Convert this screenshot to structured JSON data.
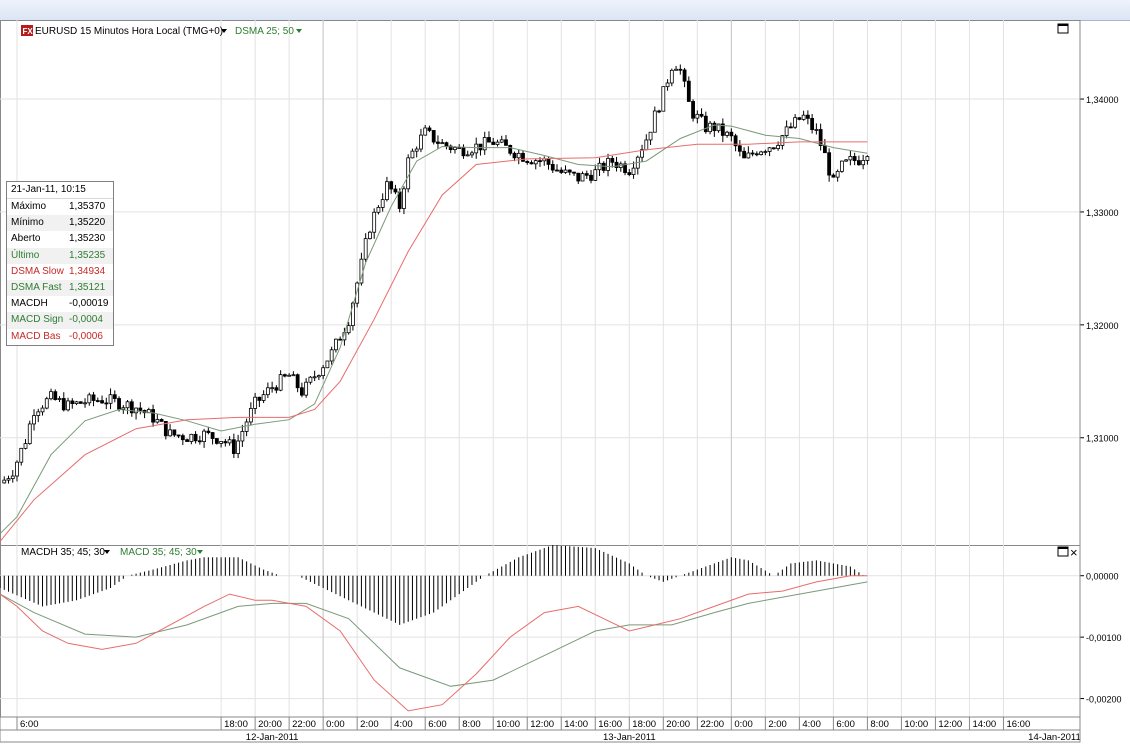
{
  "price_panel": {
    "symbol_label": "EURUSD 15 Minutos Hora Local (TMG+0)",
    "indicator_label": "DSMA 25; 50",
    "indicator_color": "#2e7d32",
    "logo_text": "FX"
  },
  "macd_panel": {
    "label_macdh": "MACDH 35; 45; 30",
    "label_macd": "MACD 35; 45; 30",
    "close_glyph": "×"
  },
  "infobox": {
    "title": "21-Jan-11, 10:15",
    "rows": [
      {
        "label": "Máximo",
        "value": "1,35370",
        "color": "#000000"
      },
      {
        "label": "Mínimo",
        "value": "1,35220",
        "color": "#000000"
      },
      {
        "label": "Aberto",
        "value": "1,35230",
        "color": "#000000"
      },
      {
        "label": "Último",
        "value": "1,35235",
        "color": "#2e7d32"
      },
      {
        "label": "DSMA Slow",
        "value": "1,34934",
        "color": "#c62828"
      },
      {
        "label": "DSMA Fast",
        "value": "1,35121",
        "color": "#2e7d32"
      },
      {
        "label": "MACDH",
        "value": "-0,00019",
        "color": "#000000"
      },
      {
        "label": "MACD Sign",
        "value": "-0,0004",
        "color": "#2e7d32"
      },
      {
        "label": "MACD Bas",
        "value": "-0,0006",
        "color": "#c62828"
      }
    ]
  },
  "chart_data": [
    {
      "type": "candlestick",
      "title": "EURUSD 15 Minutos Hora Local (TMG+0)",
      "ylim": [
        1.3005,
        1.347
      ],
      "y_ticks": [
        "1,34000",
        "1,33000",
        "1,32000",
        "1,31000"
      ],
      "y_tick_values": [
        1.34,
        1.33,
        1.32,
        1.31
      ],
      "x_ticks": [
        "6:00",
        "18:00",
        "20:00",
        "22:00",
        "0:00",
        "2:00",
        "4:00",
        "6:00",
        "8:00",
        "10:00",
        "12:00",
        "14:00",
        "16:00",
        "18:00",
        "20:00",
        "22:00",
        "0:00",
        "2:00",
        "4:00",
        "6:00",
        "8:00",
        "10:00",
        "12:00",
        "14:00",
        "16:00"
      ],
      "x_tick_hours": [
        6,
        18,
        20,
        22,
        24,
        26,
        28,
        30,
        32,
        34,
        36,
        38,
        40,
        42,
        44,
        46,
        48,
        50,
        52,
        54,
        56,
        58,
        60,
        62,
        64
      ],
      "date_labels": [
        "12-Jan-2011",
        "13-Jan-2011",
        "14-Jan-2011"
      ],
      "date_label_hours": [
        21,
        42,
        67
      ],
      "x_range_hours": [
        5,
        68.5
      ],
      "close_path": [
        [
          5.1,
          1.306
        ],
        [
          5.8,
          1.3072
        ],
        [
          6.5,
          1.3098
        ],
        [
          7.0,
          1.3125
        ],
        [
          7.5,
          1.313
        ],
        [
          8.0,
          1.3135
        ],
        [
          9.0,
          1.3128
        ],
        [
          10.0,
          1.3132
        ],
        [
          11.0,
          1.3134
        ],
        [
          12.0,
          1.3131
        ],
        [
          13.0,
          1.3127
        ],
        [
          14.0,
          1.3118
        ],
        [
          15.0,
          1.3103
        ],
        [
          16.0,
          1.3101
        ],
        [
          17.0,
          1.3103
        ],
        [
          18.0,
          1.3099
        ],
        [
          18.8,
          1.309
        ],
        [
          19.5,
          1.3115
        ],
        [
          20.0,
          1.313
        ],
        [
          21.0,
          1.3145
        ],
        [
          22.0,
          1.3155
        ],
        [
          22.8,
          1.314
        ],
        [
          23.5,
          1.3155
        ],
        [
          24.5,
          1.3175
        ],
        [
          25.5,
          1.3205
        ],
        [
          26.2,
          1.325
        ],
        [
          26.7,
          1.3285
        ],
        [
          27.2,
          1.3305
        ],
        [
          27.8,
          1.3325
        ],
        [
          28.5,
          1.3305
        ],
        [
          29.0,
          1.3345
        ],
        [
          29.5,
          1.336
        ],
        [
          30.0,
          1.337
        ],
        [
          31.0,
          1.336
        ],
        [
          32.0,
          1.3355
        ],
        [
          33.0,
          1.3358
        ],
        [
          34.0,
          1.3362
        ],
        [
          35.0,
          1.3355
        ],
        [
          36.0,
          1.3348
        ],
        [
          37.0,
          1.3345
        ],
        [
          38.0,
          1.3335
        ],
        [
          39.0,
          1.333
        ],
        [
          40.0,
          1.3335
        ],
        [
          41.0,
          1.3345
        ],
        [
          42.0,
          1.3338
        ],
        [
          43.0,
          1.3365
        ],
        [
          44.0,
          1.3405
        ],
        [
          44.6,
          1.3435
        ],
        [
          45.0,
          1.3425
        ],
        [
          45.6,
          1.339
        ],
        [
          46.5,
          1.3375
        ],
        [
          47.0,
          1.3375
        ],
        [
          48.0,
          1.3365
        ],
        [
          48.7,
          1.3345
        ],
        [
          49.5,
          1.3355
        ],
        [
          50.5,
          1.336
        ],
        [
          51.5,
          1.3375
        ],
        [
          52.2,
          1.3385
        ],
        [
          53.0,
          1.337
        ],
        [
          53.5,
          1.335
        ],
        [
          54.0,
          1.3325
        ],
        [
          54.5,
          1.334
        ],
        [
          55.0,
          1.3345
        ],
        [
          55.6,
          1.3347
        ],
        [
          56.0,
          1.3355
        ]
      ],
      "series": [
        {
          "name": "DSMA 25",
          "color": "#7a9a7a",
          "values": [
            [
              5.0,
              1.3015
            ],
            [
              6.0,
              1.303
            ],
            [
              8.0,
              1.3085
            ],
            [
              10.0,
              1.3115
            ],
            [
              12.0,
              1.3125
            ],
            [
              14.0,
              1.3122
            ],
            [
              16.0,
              1.3115
            ],
            [
              18.0,
              1.3106
            ],
            [
              20.0,
              1.3112
            ],
            [
              22.0,
              1.3116
            ],
            [
              23.5,
              1.313
            ],
            [
              25.0,
              1.318
            ],
            [
              26.5,
              1.3255
            ],
            [
              28.0,
              1.3305
            ],
            [
              29.5,
              1.3345
            ],
            [
              31.0,
              1.3358
            ],
            [
              33.0,
              1.3357
            ],
            [
              35.0,
              1.3357
            ],
            [
              37.0,
              1.335
            ],
            [
              39.0,
              1.3342
            ],
            [
              41.0,
              1.334
            ],
            [
              43.0,
              1.3345
            ],
            [
              45.0,
              1.3365
            ],
            [
              47.0,
              1.3377
            ],
            [
              48.0,
              1.3376
            ],
            [
              50.0,
              1.3368
            ],
            [
              52.0,
              1.3365
            ],
            [
              54.0,
              1.3357
            ],
            [
              56.0,
              1.3352
            ]
          ]
        },
        {
          "name": "DSMA 50",
          "color": "#e86c6c",
          "values": [
            [
              5.0,
              1.3008
            ],
            [
              7.0,
              1.3045
            ],
            [
              10.0,
              1.3085
            ],
            [
              13.0,
              1.3108
            ],
            [
              16.0,
              1.3116
            ],
            [
              19.0,
              1.3118
            ],
            [
              22.0,
              1.3118
            ],
            [
              23.5,
              1.3125
            ],
            [
              25.0,
              1.315
            ],
            [
              27.0,
              1.3205
            ],
            [
              29.0,
              1.3265
            ],
            [
              31.0,
              1.3315
            ],
            [
              33.0,
              1.3342
            ],
            [
              36.0,
              1.3347
            ],
            [
              40.0,
              1.3348
            ],
            [
              43.0,
              1.3355
            ],
            [
              46.0,
              1.336
            ],
            [
              49.0,
              1.336
            ],
            [
              52.0,
              1.3362
            ],
            [
              56.0,
              1.3362
            ]
          ]
        }
      ]
    },
    {
      "type": "bar+line",
      "title": "MACDH 35; 45; 30 / MACD 35; 45; 30",
      "ylim": [
        -0.0023,
        0.0005
      ],
      "y_ticks": [
        "0,00000",
        "-0,00100",
        "-0,00200"
      ],
      "y_tick_values": [
        0,
        -0.001,
        -0.002
      ],
      "histogram_path": [
        [
          5.0,
          -0.0002
        ],
        [
          7.5,
          -0.0005
        ],
        [
          9.5,
          -0.0004
        ],
        [
          11.5,
          -0.0002
        ],
        [
          12.5,
          0.0
        ],
        [
          14.0,
          0.0001
        ],
        [
          16.0,
          0.00025
        ],
        [
          17.0,
          0.0003
        ],
        [
          19.0,
          0.0003
        ],
        [
          20.5,
          0.0001
        ],
        [
          21.5,
          0.0
        ],
        [
          22.5,
          0.0
        ],
        [
          24.0,
          -0.0002
        ],
        [
          27.0,
          -0.0006
        ],
        [
          28.5,
          -0.0008
        ],
        [
          30.5,
          -0.0006
        ],
        [
          32.0,
          -0.0003
        ],
        [
          33.5,
          0.0
        ],
        [
          35.5,
          0.0003
        ],
        [
          37.5,
          0.0005
        ],
        [
          40.0,
          0.00045
        ],
        [
          42.0,
          0.0002
        ],
        [
          43.0,
          0.0
        ],
        [
          44.0,
          -0.0001
        ],
        [
          46.0,
          0.0001
        ],
        [
          48.0,
          0.0003
        ],
        [
          49.0,
          0.00025
        ],
        [
          50.5,
          0.0
        ],
        [
          51.5,
          0.0002
        ],
        [
          53.0,
          0.00025
        ],
        [
          55.0,
          0.00015
        ],
        [
          55.8,
          0.0
        ]
      ],
      "series": [
        {
          "name": "MACD 35; 45; 30",
          "color": "#7a9a7a",
          "values": [
            [
              5.0,
              -0.0003
            ],
            [
              7.0,
              -0.0006
            ],
            [
              10.0,
              -0.00095
            ],
            [
              13.0,
              -0.001
            ],
            [
              16.0,
              -0.0008
            ],
            [
              19.0,
              -0.0005
            ],
            [
              21.0,
              -0.00045
            ],
            [
              23.0,
              -0.00045
            ],
            [
              25.5,
              -0.0007
            ],
            [
              28.5,
              -0.0015
            ],
            [
              31.5,
              -0.0018
            ],
            [
              34.0,
              -0.0017
            ],
            [
              37.0,
              -0.0013
            ],
            [
              40.0,
              -0.0009
            ],
            [
              42.0,
              -0.0008
            ],
            [
              44.5,
              -0.0008
            ],
            [
              47.0,
              -0.0006
            ],
            [
              49.0,
              -0.00045
            ],
            [
              52.0,
              -0.0003
            ],
            [
              56.0,
              -0.0001
            ]
          ]
        },
        {
          "name": "MACD Bas",
          "color": "#e86c6c",
          "values": [
            [
              5.0,
              -0.0003
            ],
            [
              6.0,
              -0.0005
            ],
            [
              7.5,
              -0.0009
            ],
            [
              9.0,
              -0.0011
            ],
            [
              11.0,
              -0.0012
            ],
            [
              13.0,
              -0.0011
            ],
            [
              15.0,
              -0.0008
            ],
            [
              17.0,
              -0.0005
            ],
            [
              18.5,
              -0.0003
            ],
            [
              20.0,
              -0.0004
            ],
            [
              21.0,
              -0.0004
            ],
            [
              23.0,
              -0.0005
            ],
            [
              25.0,
              -0.0009
            ],
            [
              27.0,
              -0.0017
            ],
            [
              29.0,
              -0.0022
            ],
            [
              31.0,
              -0.0021
            ],
            [
              33.0,
              -0.0016
            ],
            [
              35.0,
              -0.001
            ],
            [
              37.0,
              -0.0006
            ],
            [
              39.0,
              -0.0005
            ],
            [
              40.5,
              -0.0007
            ],
            [
              42.0,
              -0.0009
            ],
            [
              43.5,
              -0.0008
            ],
            [
              45.0,
              -0.0007
            ],
            [
              47.0,
              -0.0005
            ],
            [
              49.0,
              -0.0003
            ],
            [
              51.0,
              -0.00025
            ],
            [
              53.0,
              -0.0001
            ],
            [
              55.0,
              0.0
            ],
            [
              56.0,
              0.0
            ]
          ]
        }
      ]
    }
  ]
}
